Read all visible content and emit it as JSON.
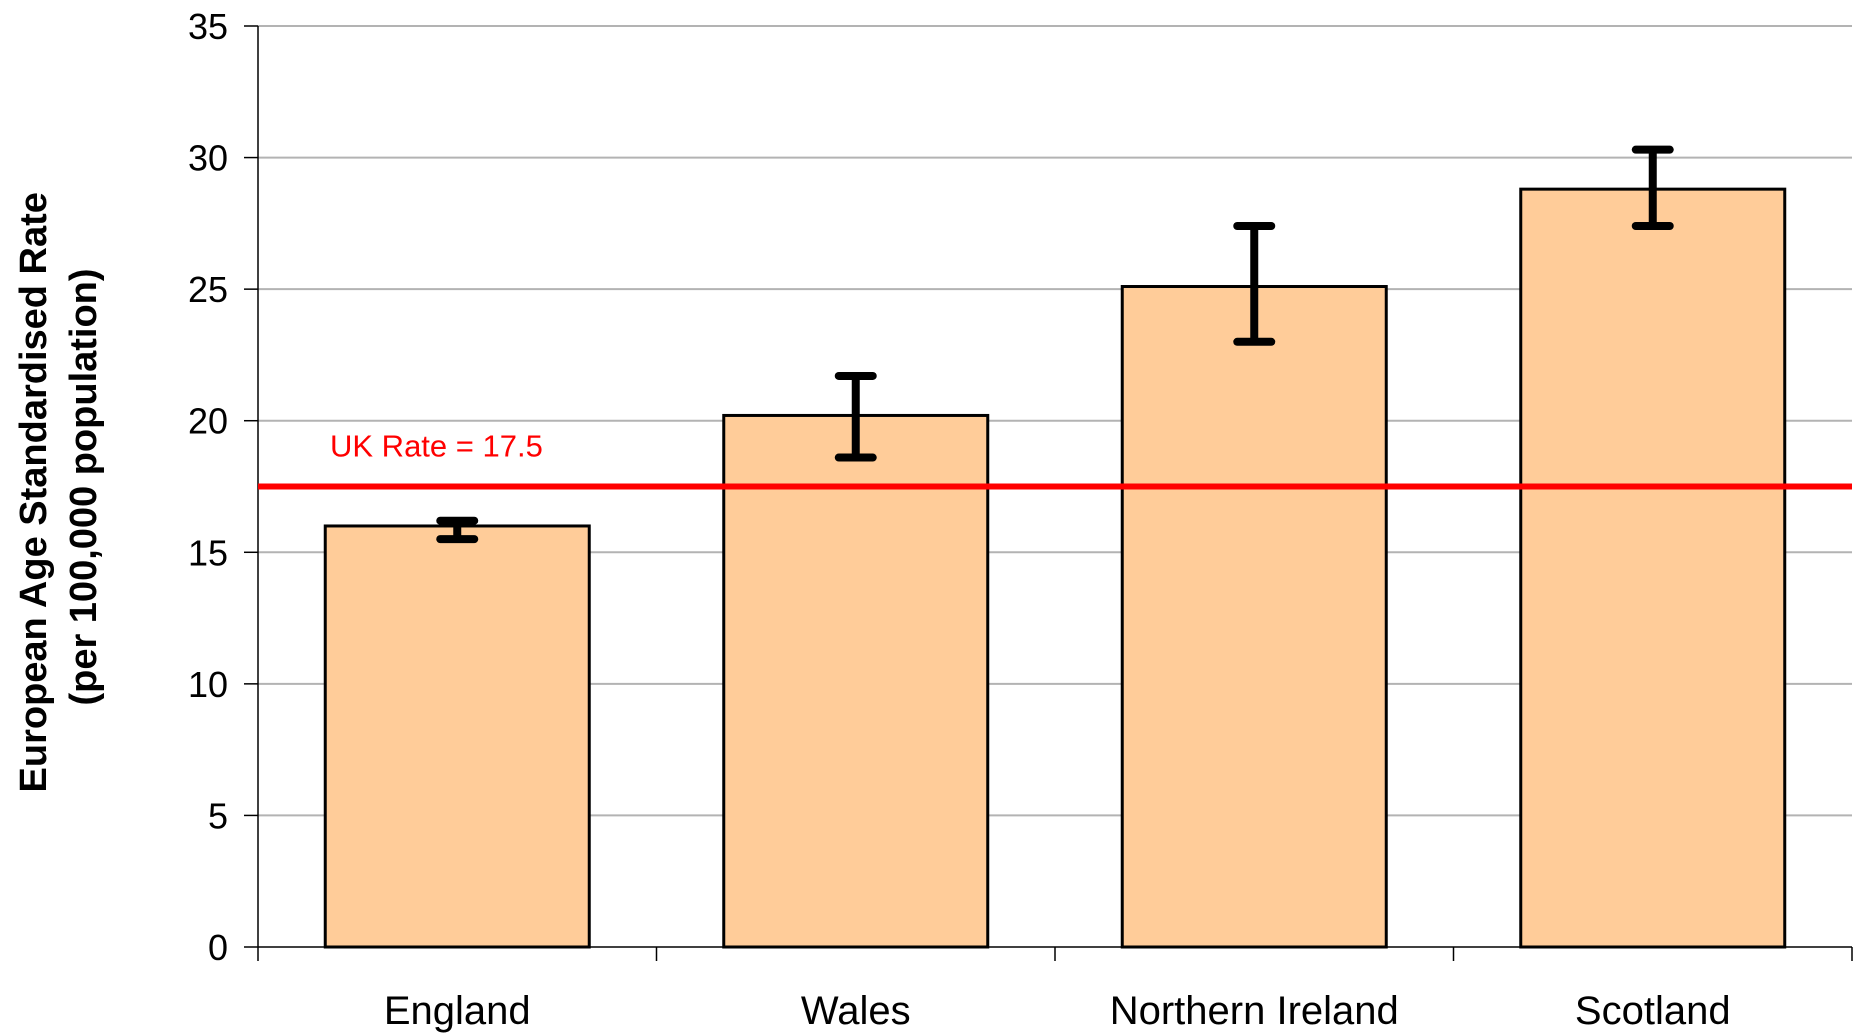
{
  "chart_data": {
    "type": "bar",
    "title": "",
    "xlabel": "",
    "ylabel": "European Age Standardised Rate",
    "ylabel_line2": "(per 100,000 population)",
    "categories": [
      "England",
      "Wales",
      "Northern Ireland",
      "Scotland"
    ],
    "values": [
      16.0,
      20.2,
      25.1,
      28.8
    ],
    "error_low": [
      15.5,
      18.6,
      23.0,
      27.4
    ],
    "error_high": [
      16.2,
      21.7,
      27.4,
      30.3
    ],
    "ylim": [
      0,
      35
    ],
    "yticks": [
      0,
      5,
      10,
      15,
      20,
      25,
      30,
      35
    ],
    "grid": true,
    "legend": "none",
    "reference_line": {
      "value": 17.5,
      "label": "UK Rate = 17.5",
      "color": "#ff0000"
    },
    "colors": {
      "bar_fill": "#ffcc99",
      "bar_stroke": "#000000",
      "grid": "#b3b3b3",
      "error_bar": "#000000"
    }
  }
}
